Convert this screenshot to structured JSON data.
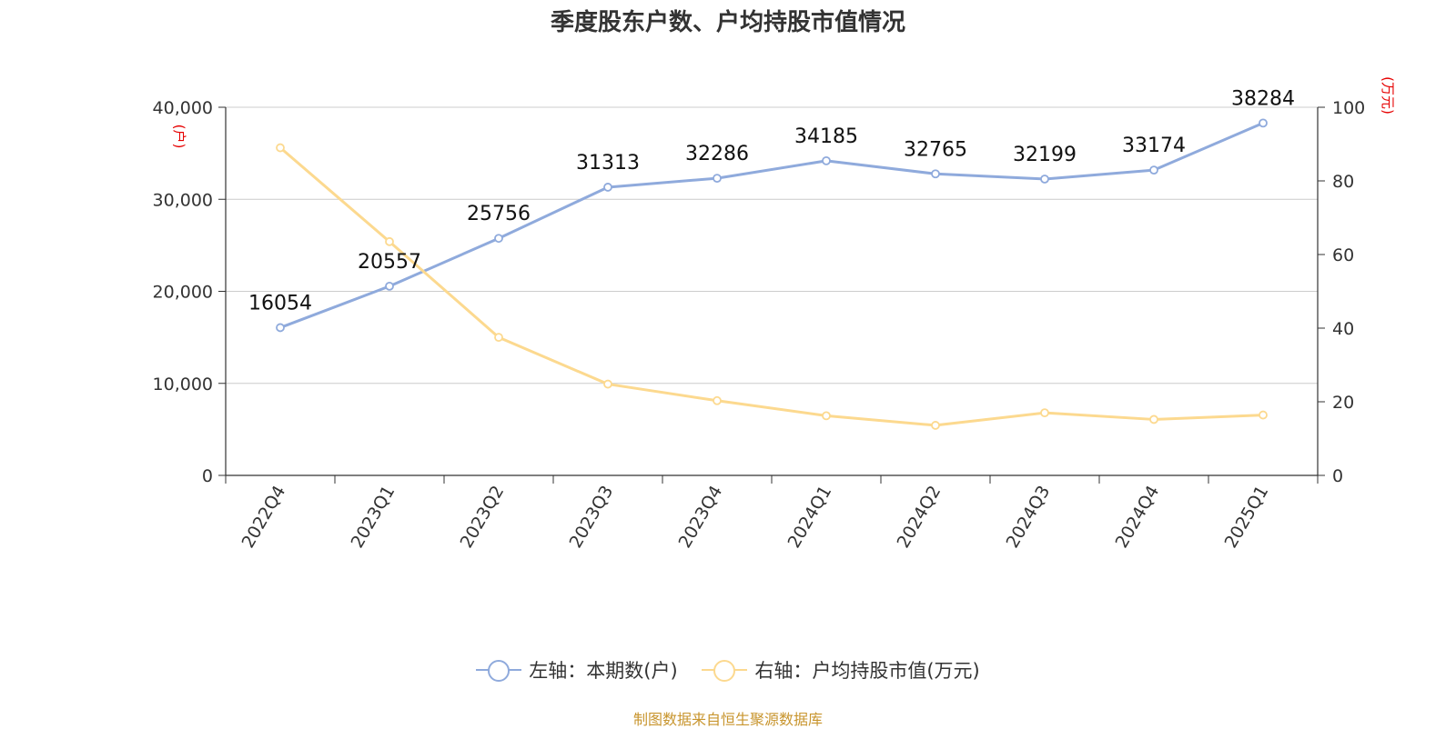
{
  "chart_data": {
    "type": "line",
    "title": "季度股东户数、户均持股市值情况",
    "categories": [
      "2022Q4",
      "2023Q1",
      "2023Q2",
      "2023Q3",
      "2023Q4",
      "2024Q1",
      "2024Q2",
      "2024Q3",
      "2024Q4",
      "2025Q1"
    ],
    "left_axis": {
      "unit": "(户)",
      "ylim": [
        0,
        40000
      ],
      "ticks": [
        "0",
        "10,000",
        "20,000",
        "30,000",
        "40,000"
      ]
    },
    "right_axis": {
      "unit": "(万元)",
      "ylim": [
        0,
        100
      ],
      "ticks": [
        "0",
        "20",
        "40",
        "60",
        "80",
        "100"
      ]
    },
    "grid": true,
    "legend_position": "bottom",
    "series": [
      {
        "name": "左轴：本期数(户)",
        "axis": "left",
        "color": "#8faadc",
        "values": [
          16054,
          20557,
          25756,
          31313,
          32286,
          34185,
          32765,
          32199,
          33174,
          38284
        ],
        "labels": [
          "16054",
          "20557",
          "25756",
          "31313",
          "32286",
          "34185",
          "32765",
          "32199",
          "33174",
          "38284"
        ]
      },
      {
        "name": "右轴：户均持股市值(万元)",
        "axis": "right",
        "color": "#fcd98f",
        "values": [
          89,
          63.5,
          37.5,
          24.8,
          20.3,
          16.2,
          13.6,
          17.0,
          15.2,
          16.4
        ]
      }
    ]
  },
  "source": "制图数据来自恒生聚源数据库"
}
